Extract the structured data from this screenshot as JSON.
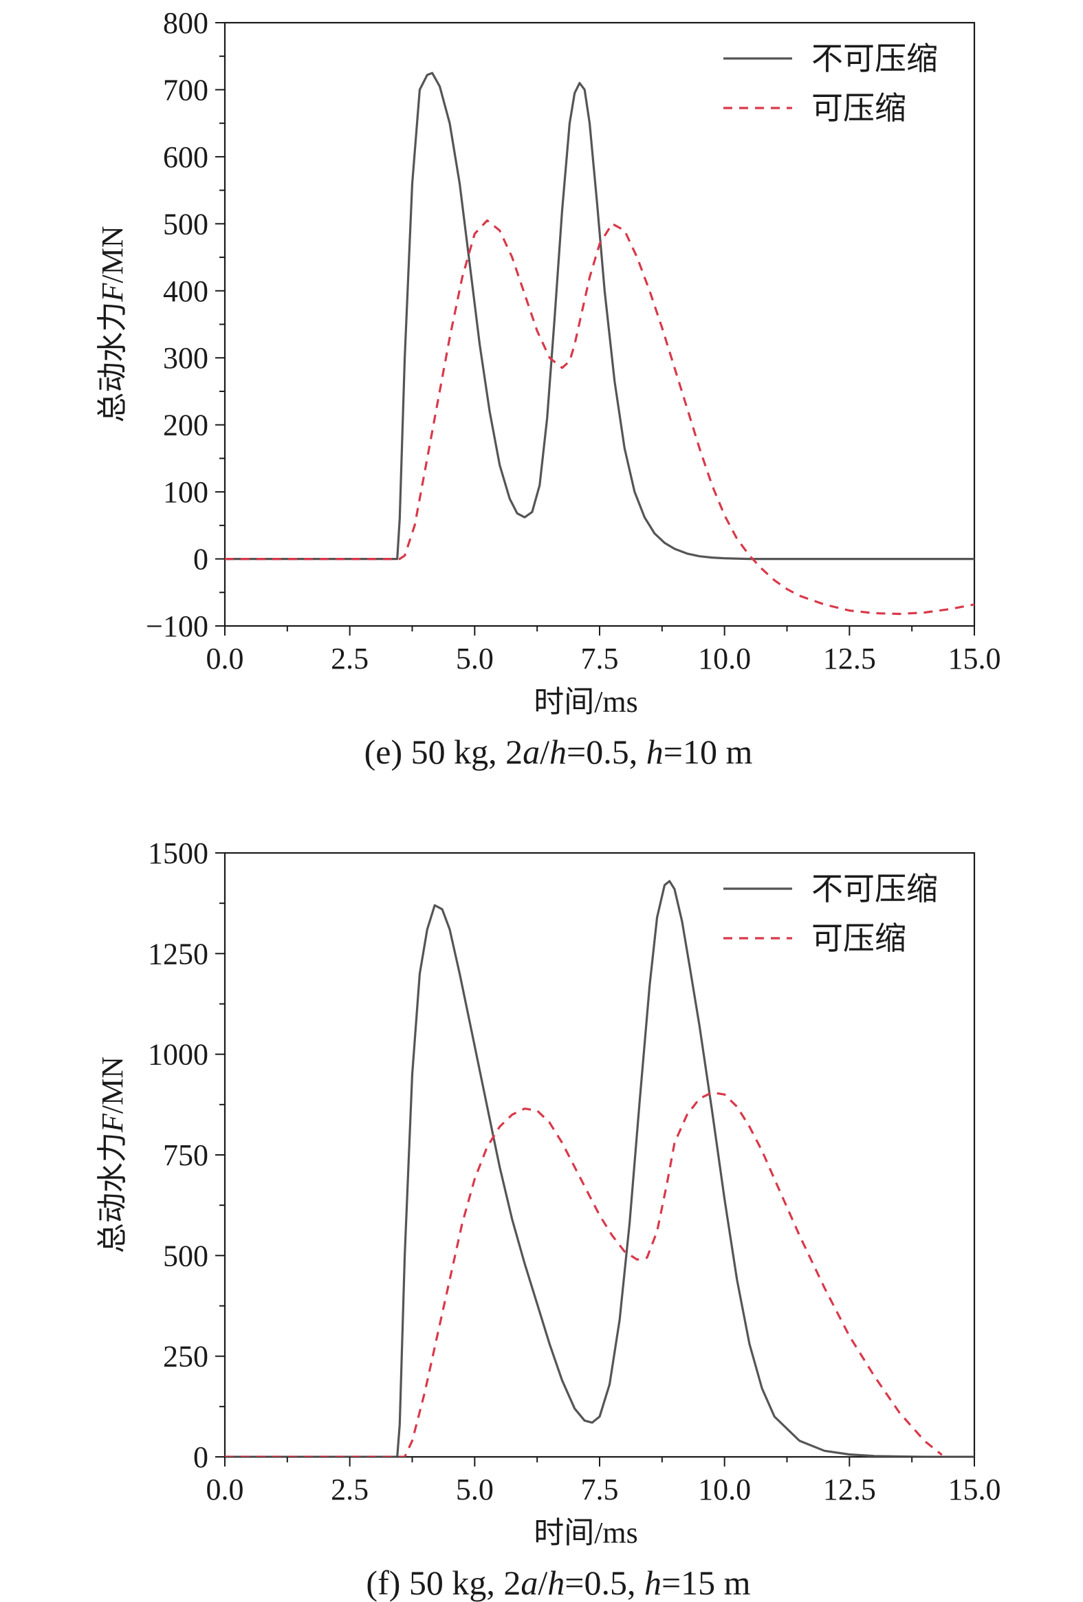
{
  "chart_data": [
    {
      "type": "line",
      "caption": "(e) 50 kg, 2a/h=0.5, h=10 m",
      "caption_parts": [
        "(e) 50 kg, 2",
        "a",
        "/",
        "h",
        "=0.5, ",
        "h",
        "=10 m"
      ],
      "xlabel": "时间/ms",
      "ylabel": "总动水力F/MN",
      "ylabel_parts": [
        "总动水力",
        "F",
        "/MN"
      ],
      "xlim": [
        0,
        15
      ],
      "ylim": [
        -100,
        800
      ],
      "xticks": [
        0,
        2.5,
        5,
        7.5,
        10,
        12.5,
        15
      ],
      "xtick_labels": [
        "0.0",
        "2.5",
        "5.0",
        "7.5",
        "10.0",
        "12.5",
        "15.0"
      ],
      "yticks": [
        -100,
        0,
        100,
        200,
        300,
        400,
        500,
        600,
        700,
        800
      ],
      "ytick_labels": [
        "−100",
        "0",
        "100",
        "200",
        "300",
        "400",
        "500",
        "600",
        "700",
        "800"
      ],
      "legend": "top-right",
      "series": [
        {
          "name": "不可压缩",
          "style": "solid",
          "color": "#555555",
          "x": [
            0,
            3.45,
            3.5,
            3.6,
            3.75,
            3.9,
            4.05,
            4.15,
            4.3,
            4.5,
            4.7,
            4.9,
            5.1,
            5.3,
            5.5,
            5.7,
            5.85,
            6.0,
            6.15,
            6.3,
            6.45,
            6.6,
            6.75,
            6.9,
            7.0,
            7.1,
            7.2,
            7.3,
            7.45,
            7.6,
            7.8,
            8.0,
            8.2,
            8.4,
            8.6,
            8.8,
            9.0,
            9.25,
            9.5,
            9.75,
            10.0,
            10.5,
            11.0,
            12.0,
            15.0
          ],
          "y": [
            0,
            0,
            60,
            300,
            560,
            700,
            722,
            725,
            705,
            650,
            560,
            440,
            320,
            220,
            140,
            90,
            68,
            62,
            70,
            110,
            210,
            360,
            520,
            650,
            695,
            710,
            700,
            650,
            530,
            400,
            265,
            165,
            100,
            62,
            38,
            24,
            15,
            8,
            4,
            2,
            1,
            0,
            0,
            0,
            0
          ]
        },
        {
          "name": "可压缩",
          "style": "dashed",
          "color": "#d8394a",
          "x": [
            0,
            3.5,
            3.6,
            3.8,
            4.0,
            4.25,
            4.5,
            4.75,
            5.0,
            5.25,
            5.5,
            5.75,
            6.0,
            6.25,
            6.5,
            6.75,
            6.9,
            7.0,
            7.15,
            7.3,
            7.5,
            7.75,
            8.0,
            8.25,
            8.5,
            8.75,
            9.0,
            9.25,
            9.5,
            9.75,
            10.0,
            10.25,
            10.5,
            10.75,
            11.0,
            11.25,
            11.5,
            12.0,
            12.5,
            13.0,
            13.5,
            14.0,
            14.5,
            15.0
          ],
          "y": [
            0,
            0,
            5,
            50,
            130,
            230,
            330,
            420,
            485,
            505,
            490,
            450,
            395,
            340,
            300,
            285,
            295,
            320,
            370,
            420,
            470,
            500,
            490,
            450,
            400,
            345,
            285,
            225,
            165,
            110,
            65,
            30,
            5,
            -15,
            -32,
            -45,
            -55,
            -68,
            -77,
            -81,
            -82,
            -80,
            -75,
            -68
          ]
        }
      ]
    },
    {
      "type": "line",
      "caption": "(f) 50 kg, 2a/h=0.5, h=15 m",
      "caption_parts": [
        "(f) 50 kg, 2",
        "a",
        "/",
        "h",
        "=0.5, ",
        "h",
        "=15 m"
      ],
      "xlabel": "时间/ms",
      "ylabel": "总动水力F/MN",
      "ylabel_parts": [
        "总动水力",
        "F",
        "/MN"
      ],
      "xlim": [
        0,
        15
      ],
      "ylim": [
        0,
        1500
      ],
      "xticks": [
        0,
        2.5,
        5,
        7.5,
        10,
        12.5,
        15
      ],
      "xtick_labels": [
        "0.0",
        "2.5",
        "5.0",
        "7.5",
        "10.0",
        "12.5",
        "15.0"
      ],
      "yticks": [
        0,
        250,
        500,
        750,
        1000,
        1250,
        1500
      ],
      "ytick_labels": [
        "0",
        "250",
        "500",
        "750",
        "1000",
        "1250",
        "1500"
      ],
      "legend": "top-right",
      "series": [
        {
          "name": "不可压缩",
          "style": "solid",
          "color": "#555555",
          "x": [
            0,
            3.45,
            3.5,
            3.6,
            3.75,
            3.9,
            4.05,
            4.2,
            4.35,
            4.5,
            4.7,
            4.9,
            5.1,
            5.3,
            5.5,
            5.75,
            6.0,
            6.25,
            6.5,
            6.75,
            7.0,
            7.2,
            7.35,
            7.5,
            7.7,
            7.9,
            8.1,
            8.3,
            8.5,
            8.65,
            8.8,
            8.9,
            9.0,
            9.15,
            9.3,
            9.5,
            9.75,
            10.0,
            10.25,
            10.5,
            10.75,
            11.0,
            11.5,
            12.0,
            12.5,
            13.0,
            14.0,
            15.0
          ],
          "y": [
            0,
            0,
            80,
            500,
            950,
            1200,
            1310,
            1370,
            1360,
            1310,
            1200,
            1080,
            960,
            840,
            720,
            590,
            480,
            380,
            280,
            190,
            120,
            90,
            85,
            100,
            180,
            340,
            580,
            880,
            1170,
            1340,
            1420,
            1430,
            1410,
            1330,
            1220,
            1070,
            860,
            640,
            440,
            280,
            170,
            100,
            40,
            15,
            6,
            2,
            0,
            0
          ]
        },
        {
          "name": "可压缩",
          "style": "dashed",
          "color": "#d8394a",
          "x": [
            0,
            3.6,
            3.75,
            4.0,
            4.25,
            4.5,
            4.75,
            5.0,
            5.25,
            5.5,
            5.75,
            6.0,
            6.25,
            6.5,
            6.75,
            7.0,
            7.25,
            7.5,
            7.75,
            8.0,
            8.25,
            8.45,
            8.65,
            8.85,
            9.0,
            9.25,
            9.5,
            9.75,
            10.0,
            10.25,
            10.5,
            10.75,
            11.0,
            11.5,
            12.0,
            12.5,
            13.0,
            13.5,
            14.0,
            14.35
          ],
          "y": [
            0,
            0,
            40,
            160,
            300,
            440,
            580,
            690,
            770,
            820,
            850,
            865,
            860,
            830,
            780,
            720,
            660,
            600,
            550,
            510,
            490,
            495,
            560,
            680,
            780,
            850,
            890,
            905,
            900,
            870,
            820,
            760,
            690,
            550,
            420,
            300,
            200,
            110,
            40,
            5
          ]
        }
      ]
    }
  ]
}
